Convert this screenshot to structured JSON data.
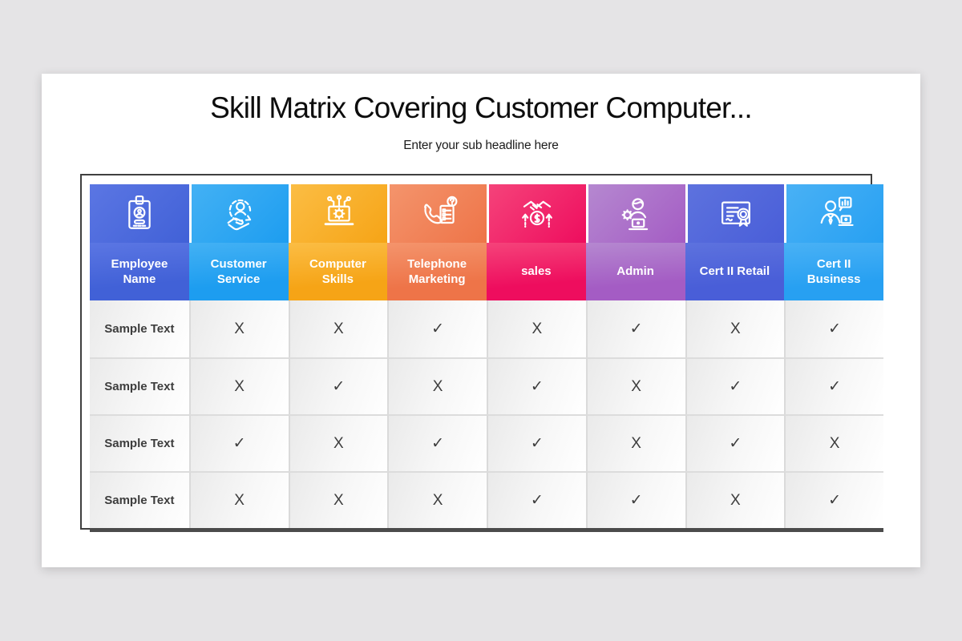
{
  "background_color": "#e5e4e6",
  "slide": {
    "title": "Skill Matrix Covering Customer Computer...",
    "subtitle": "Enter your sub headline here"
  },
  "accents": {
    "outline_color": "#404040",
    "bottom_bar_color": "#4b4b4b",
    "cell_text_color": "#3d3d3d"
  },
  "table": {
    "columns": [
      {
        "label": "Employee Name",
        "icon": "id-badge-icon",
        "color_light": "#5b76e3",
        "color_base": "#4161d7"
      },
      {
        "label": "Customer Service",
        "icon": "customer-service-icon",
        "color_light": "#43b1f4",
        "color_base": "#1d9df0"
      },
      {
        "label": "Computer Skills",
        "icon": "computer-skills-icon",
        "color_light": "#fbbd44",
        "color_base": "#f6a416"
      },
      {
        "label": "Telephone Marketing",
        "icon": "telephone-marketing-icon",
        "color_light": "#f4946c",
        "color_base": "#ee7448"
      },
      {
        "label": "sales",
        "icon": "sales-handshake-icon",
        "color_light": "#f5437a",
        "color_base": "#ee0d5e"
      },
      {
        "label": "Admin",
        "icon": "admin-icon",
        "color_light": "#b588d0",
        "color_base": "#a45cc4"
      },
      {
        "label": "Cert II Retail",
        "icon": "certificate-retail-icon",
        "color_light": "#5d72de",
        "color_base": "#495ed8"
      },
      {
        "label": "Cert II Business",
        "icon": "certificate-business-icon",
        "color_light": "#49b1f5",
        "color_base": "#27a0f2"
      }
    ],
    "rows": [
      {
        "name": "Sample Text",
        "marks": [
          "X",
          "X",
          "✓",
          "X",
          "✓",
          "X",
          "✓"
        ]
      },
      {
        "name": "Sample Text",
        "marks": [
          "X",
          "✓",
          "X",
          "✓",
          "X",
          "✓",
          "✓"
        ]
      },
      {
        "name": "Sample Text",
        "marks": [
          "✓",
          "X",
          "✓",
          "✓",
          "X",
          "✓",
          "X"
        ]
      },
      {
        "name": "Sample Text",
        "marks": [
          "X",
          "X",
          "X",
          "✓",
          "✓",
          "X",
          "✓"
        ]
      }
    ],
    "mark_glyphs": {
      "check": "✓",
      "cross": "X"
    }
  }
}
